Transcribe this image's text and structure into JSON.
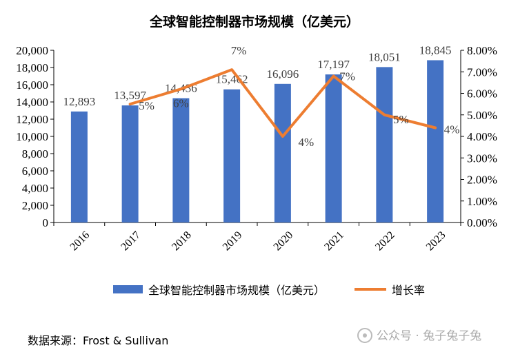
{
  "chart_data": {
    "type": "bar",
    "title": "全球智能控制器市场规模（亿美元）",
    "categories": [
      "2016",
      "2017",
      "2018",
      "2019",
      "2020",
      "2021",
      "2022",
      "2023"
    ],
    "series": [
      {
        "name": "全球智能控制器市场规模（亿美元）",
        "type": "bar",
        "axis": "left",
        "values": [
          12893,
          13597,
          14436,
          15462,
          16096,
          17197,
          18051,
          18845
        ],
        "labels": [
          "12,893",
          "13,597",
          "14,436",
          "15,462",
          "16,096",
          "17,197",
          "18,051",
          "18,845"
        ],
        "color": "#4472c4"
      },
      {
        "name": "增长率",
        "type": "line",
        "axis": "right",
        "values": [
          null,
          5.5,
          6.2,
          7.1,
          4.0,
          6.8,
          5.0,
          4.4
        ],
        "labels": [
          "",
          "5%",
          "6%",
          "7%",
          "4%",
          "7%",
          "5%",
          "4%"
        ],
        "color": "#ed7d31"
      }
    ],
    "ylim_left": [
      0,
      20000
    ],
    "yticks_left": [
      "0",
      "2,000",
      "4,000",
      "6,000",
      "8,000",
      "10,000",
      "12,000",
      "14,000",
      "16,000",
      "18,000",
      "20,000"
    ],
    "ylim_right": [
      0,
      8
    ],
    "yticks_right": [
      "0.00%",
      "1.00%",
      "2.00%",
      "3.00%",
      "4.00%",
      "5.00%",
      "6.00%",
      "7.00%",
      "8.00%"
    ],
    "grid": false,
    "legend": "bottom",
    "source": "数据来源：Frost & Sullivan"
  },
  "watermark": "公众号 · 兔子兔子兔"
}
